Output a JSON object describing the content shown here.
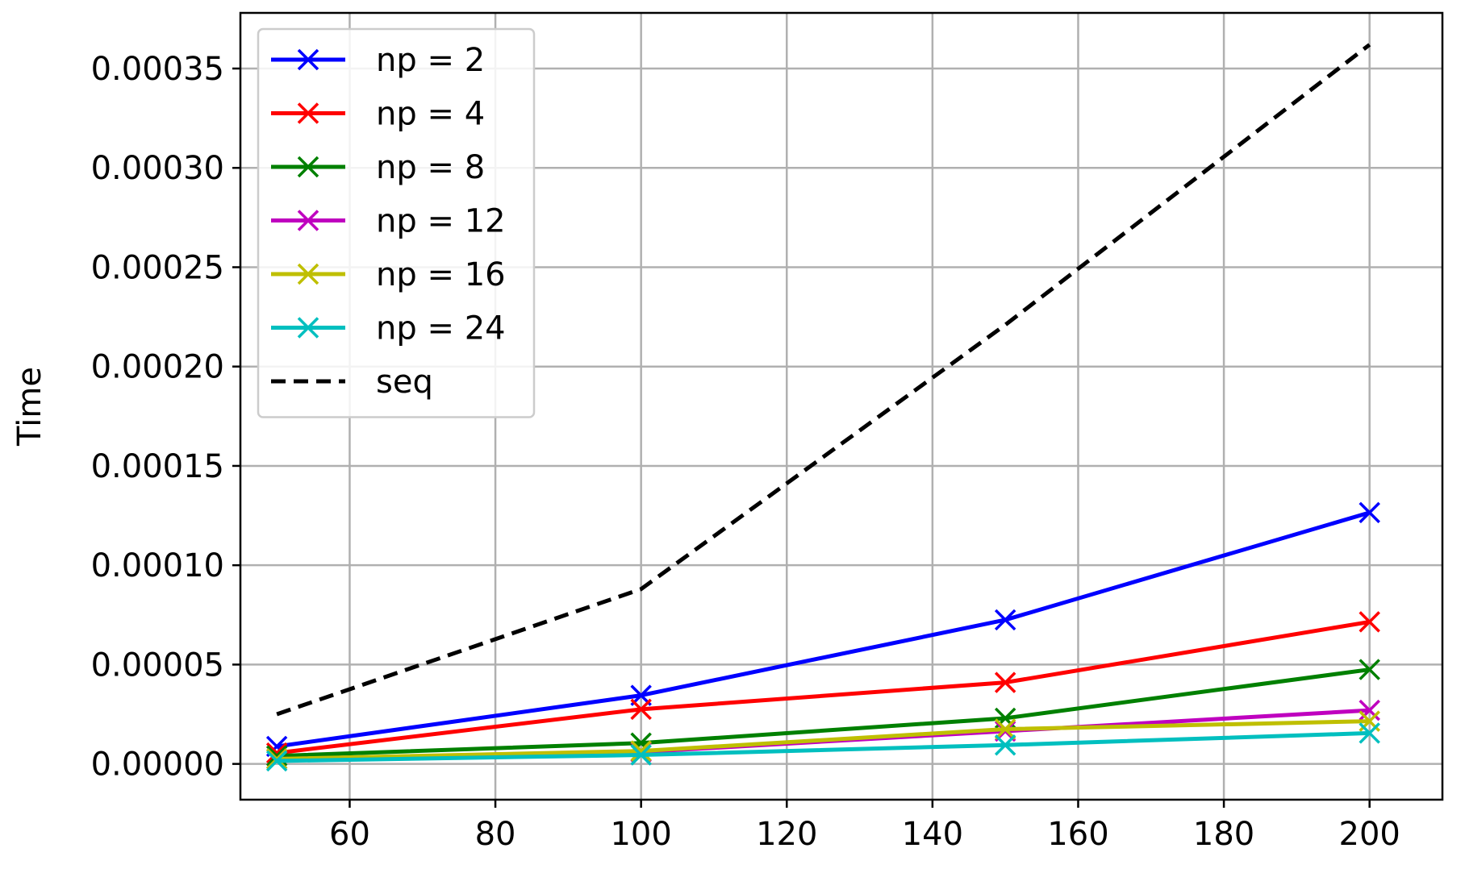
{
  "chart_data": {
    "type": "line",
    "title": "",
    "xlabel": "",
    "ylabel": "Time",
    "x": [
      50,
      100,
      150,
      200
    ],
    "xlim": [
      45,
      210
    ],
    "ylim": [
      -1.8e-05,
      0.000378
    ],
    "xticks": [
      60,
      80,
      100,
      120,
      140,
      160,
      180,
      200
    ],
    "yticks": [
      0.0,
      5e-05,
      0.0001,
      0.00015,
      0.0002,
      0.00025,
      0.0003,
      0.00035
    ],
    "xtick_labels": [
      "60",
      "80",
      "100",
      "120",
      "140",
      "160",
      "180",
      "200"
    ],
    "ytick_labels": [
      "0.00000",
      "0.00005",
      "0.00010",
      "0.00015",
      "0.00020",
      "0.00025",
      "0.00030",
      "0.00035"
    ],
    "grid": true,
    "legend_position": "top-left",
    "series": [
      {
        "name": "np = 2",
        "color": "#0000ff",
        "marker": "x",
        "dashed": false,
        "values": [
          8.8e-06,
          3.45e-05,
          7.25e-05,
          0.0001265
        ]
      },
      {
        "name": "np = 4",
        "color": "#ff0000",
        "marker": "x",
        "dashed": false,
        "values": [
          5.5e-06,
          2.75e-05,
          4.1e-05,
          7.15e-05
        ]
      },
      {
        "name": "np = 8",
        "color": "#008000",
        "marker": "x",
        "dashed": false,
        "values": [
          4e-06,
          1.05e-05,
          2.3e-05,
          4.75e-05
        ]
      },
      {
        "name": "np = 12",
        "color": "#bf00bf",
        "marker": "x",
        "dashed": false,
        "values": [
          2.5e-06,
          6e-06,
          1.65e-05,
          2.7e-05
        ]
      },
      {
        "name": "np = 16",
        "color": "#bfbf00",
        "marker": "x",
        "dashed": false,
        "values": [
          2.5e-06,
          6.5e-06,
          1.75e-05,
          2.15e-05
        ]
      },
      {
        "name": "np = 24",
        "color": "#00bfbf",
        "marker": "x",
        "dashed": false,
        "values": [
          1.5e-06,
          4.5e-06,
          9.5e-06,
          1.55e-05
        ]
      },
      {
        "name": "seq",
        "color": "#000000",
        "marker": "none",
        "dashed": true,
        "values": [
          2.5e-05,
          8.8e-05,
          0.000221,
          0.000362
        ]
      }
    ]
  }
}
